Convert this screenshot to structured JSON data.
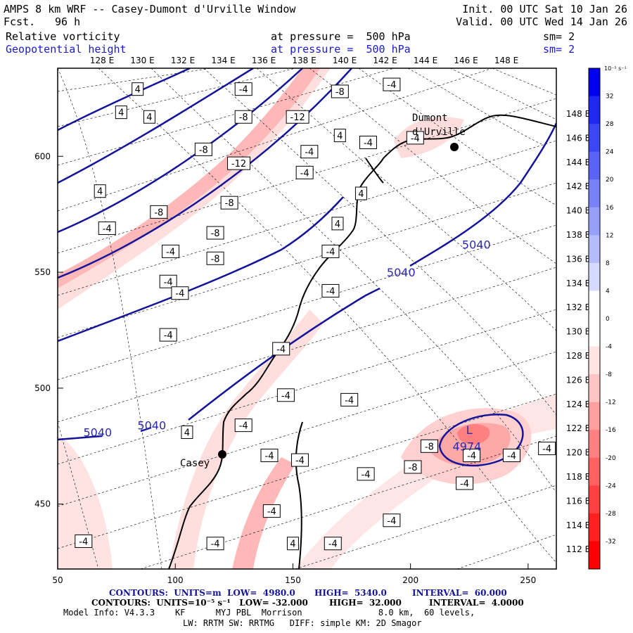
{
  "header": {
    "title": "AMPS 8 km WRF -- Casey-Dumont d'Urville Window",
    "fcst_label": "Fcst.",
    "fcst_value": "96 h",
    "init": "Init. 00 UTC Sat 10 Jan 26",
    "valid": "Valid. 00 UTC Wed 14 Jan 26",
    "field1_name": "Relative vorticity",
    "field1_level": "at pressure =  500 hPa",
    "field1_sm": "sm= 2",
    "field2_name": "Geopotential height",
    "field2_level": "at pressure =  500 hPa",
    "field2_sm": "sm= 2"
  },
  "top_longitudes": [
    "128 E",
    "130 E",
    "132 E",
    "134 E",
    "136 E",
    "138 E",
    "140 E",
    "142 E",
    "144 E",
    "146 E",
    "148 E"
  ],
  "right_latitudes": [
    "148 E",
    "146 E",
    "144 E",
    "142 E",
    "140 E",
    "138 E",
    "136 E",
    "134 E",
    "132 E",
    "130 E",
    "128 E",
    "126 E",
    "124 E",
    "122 E",
    "120 E",
    "118 E",
    "116 E",
    "114 E",
    "112 E"
  ],
  "axes": {
    "x_ticks": [
      "50",
      "100",
      "150",
      "200",
      "250"
    ],
    "y_ticks": [
      "600",
      "550",
      "500",
      "450"
    ],
    "x_range": [
      50,
      262
    ],
    "y_range": [
      422,
      638
    ]
  },
  "stations": [
    {
      "name": "Dumont\nd'Urville",
      "x": 220,
      "y": 604
    },
    {
      "name": "Casey",
      "x": 120,
      "y": 473
    }
  ],
  "colorbar": {
    "unit": "10⁻⁵ s⁻¹",
    "labels": [
      "32",
      "28",
      "24",
      "20",
      "16",
      "12",
      "8",
      "4",
      "0",
      "-4",
      "-8",
      "-12",
      "-16",
      "-20",
      "-24",
      "-28",
      "-32"
    ],
    "colors": [
      "#0000ee",
      "#1e28f0",
      "#3c46f2",
      "#5a64f4",
      "#7882f6",
      "#96a0f8",
      "#b4bcfa",
      "#d6daff",
      "#ffffff",
      "#ffffff",
      "#ffe4e4",
      "#ffc4c4",
      "#ffa0a0",
      "#ff8080",
      "#ff6060",
      "#ff4040",
      "#ff2020",
      "#ff0000"
    ]
  },
  "contour_labels": [
    {
      "text": "5040",
      "x": 228,
      "y": 562
    },
    {
      "text": "5040",
      "x": 196,
      "y": 550
    },
    {
      "text": "5040",
      "x": 67,
      "y": 481
    },
    {
      "text": "5040",
      "x": 90,
      "y": 484
    },
    {
      "text": "4974",
      "x": 224,
      "y": 475
    }
  ],
  "low_marker": {
    "text": "L",
    "x": 225,
    "y": 482
  },
  "vort_labels": [
    {
      "text": "4",
      "x": 84,
      "y": 629
    },
    {
      "text": "4",
      "x": 77,
      "y": 619
    },
    {
      "text": "4",
      "x": 89,
      "y": 617
    },
    {
      "text": "-4",
      "x": 129,
      "y": 629
    },
    {
      "text": "-8",
      "x": 170,
      "y": 628
    },
    {
      "text": "-4",
      "x": 192,
      "y": 631
    },
    {
      "text": "-8",
      "x": 129,
      "y": 617
    },
    {
      "text": "-12",
      "x": 152,
      "y": 617
    },
    {
      "text": "4",
      "x": 170,
      "y": 609
    },
    {
      "text": "-4",
      "x": 182,
      "y": 606
    },
    {
      "text": "-4",
      "x": 202,
      "y": 608
    },
    {
      "text": "-8",
      "x": 112,
      "y": 603
    },
    {
      "text": "-12",
      "x": 127,
      "y": 597
    },
    {
      "text": "-4",
      "x": 157,
      "y": 602
    },
    {
      "text": "-4",
      "x": 155,
      "y": 593
    },
    {
      "text": "4",
      "x": 68,
      "y": 585
    },
    {
      "text": "-8",
      "x": 123,
      "y": 580
    },
    {
      "text": "4",
      "x": 179,
      "y": 584
    },
    {
      "text": "-8",
      "x": 93,
      "y": 576
    },
    {
      "text": "-4",
      "x": 71,
      "y": 569
    },
    {
      "text": "4",
      "x": 169,
      "y": 571
    },
    {
      "text": "-8",
      "x": 117,
      "y": 567
    },
    {
      "text": "-4",
      "x": 98,
      "y": 559
    },
    {
      "text": "-8",
      "x": 117,
      "y": 556
    },
    {
      "text": "-4",
      "x": 166,
      "y": 559
    },
    {
      "text": "-4",
      "x": 97,
      "y": 546
    },
    {
      "text": "-4",
      "x": 102,
      "y": 541
    },
    {
      "text": "-4",
      "x": 166,
      "y": 542
    },
    {
      "text": "-4",
      "x": 97,
      "y": 523
    },
    {
      "text": "-4",
      "x": 145,
      "y": 517
    },
    {
      "text": "-4",
      "x": 147,
      "y": 497
    },
    {
      "text": "-4",
      "x": 174,
      "y": 495
    },
    {
      "text": "-4",
      "x": 129,
      "y": 484
    },
    {
      "text": "4",
      "x": 105,
      "y": 481
    },
    {
      "text": "-4",
      "x": 140,
      "y": 471
    },
    {
      "text": "-4",
      "x": 153,
      "y": 469
    },
    {
      "text": "-8",
      "x": 208,
      "y": 475
    },
    {
      "text": "-4",
      "x": 226,
      "y": 471
    },
    {
      "text": "-4",
      "x": 243,
      "y": 471
    },
    {
      "text": "-4",
      "x": 258,
      "y": 474
    },
    {
      "text": "-4",
      "x": 181,
      "y": 463
    },
    {
      "text": "-8",
      "x": 201,
      "y": 466
    },
    {
      "text": "-4",
      "x": 223,
      "y": 459
    },
    {
      "text": "-4",
      "x": 141,
      "y": 447
    },
    {
      "text": "-4",
      "x": 192,
      "y": 443
    },
    {
      "text": "-4",
      "x": 61,
      "y": 434
    },
    {
      "text": "-4",
      "x": 117,
      "y": 433
    },
    {
      "text": "4",
      "x": 150,
      "y": 433
    },
    {
      "text": "-4",
      "x": 167,
      "y": 433
    }
  ],
  "footer": {
    "line1_a": "CONTOURS:  UNITS=m  LOW=  4980.0",
    "line1_b": "HIGH=  5340.0",
    "line1_c": "INTERVAL=  60.000",
    "line2_a": "CONTOURS:  UNITS=10⁻⁵ s⁻¹   LOW= -32.000",
    "line2_b": "HIGH=  32.000",
    "line2_c": "INTERVAL=  4.0000",
    "line3": "Model Info: V4.3.3    KF      MYJ PBL  Morrison               8.0 km,  60 levels,",
    "line4": "LW: RRTM SW: RRTMG   DIFF: simple KM: 2D Smagor"
  }
}
